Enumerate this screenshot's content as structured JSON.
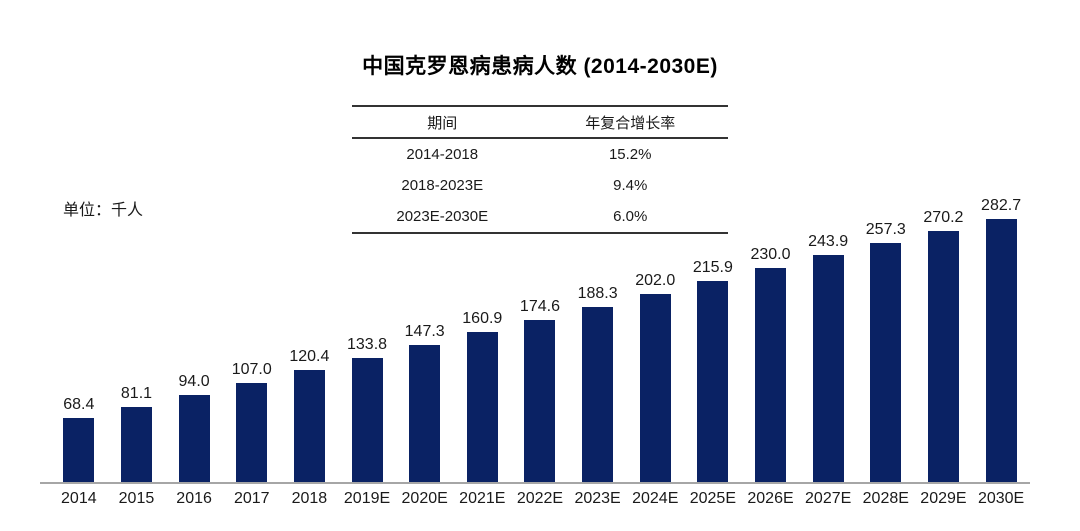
{
  "chart_data": {
    "type": "bar",
    "title": "中国克罗恩病患病人数 (2014-2030E)",
    "unit_label": "单位：千人",
    "xlabel": "",
    "ylabel": "千人",
    "categories": [
      "2014",
      "2015",
      "2016",
      "2017",
      "2018",
      "2019E",
      "2020E",
      "2021E",
      "2022E",
      "2023E",
      "2024E",
      "2025E",
      "2026E",
      "2027E",
      "2028E",
      "2029E",
      "2030E"
    ],
    "values": [
      68.4,
      81.1,
      94.0,
      107.0,
      120.4,
      133.8,
      147.3,
      160.9,
      174.6,
      188.3,
      202.0,
      215.9,
      230.0,
      243.9,
      257.3,
      270.2,
      282.7
    ],
    "bar_labels": [
      "68.4",
      "81.1",
      "94.0",
      "107.0",
      "120.4",
      "133.8",
      "147.3",
      "160.9",
      "174.6",
      "188.3",
      "202.0",
      "215.9",
      "230.0",
      "243.9",
      "257.3",
      "270.2",
      "282.7"
    ],
    "ylim": [
      0,
      300
    ],
    "grid": false,
    "legend_position": "none",
    "annotation_table": {
      "headers": [
        "期间",
        "年复合增长率"
      ],
      "rows": [
        [
          "2014-2018",
          "15.2%"
        ],
        [
          "2018-2023E",
          "9.4%"
        ],
        [
          "2023E-2030E",
          "6.0%"
        ]
      ]
    },
    "colors": {
      "bar": "#0a2264",
      "baseline": "#a6a6a6",
      "text": "#1a1a1a"
    }
  }
}
